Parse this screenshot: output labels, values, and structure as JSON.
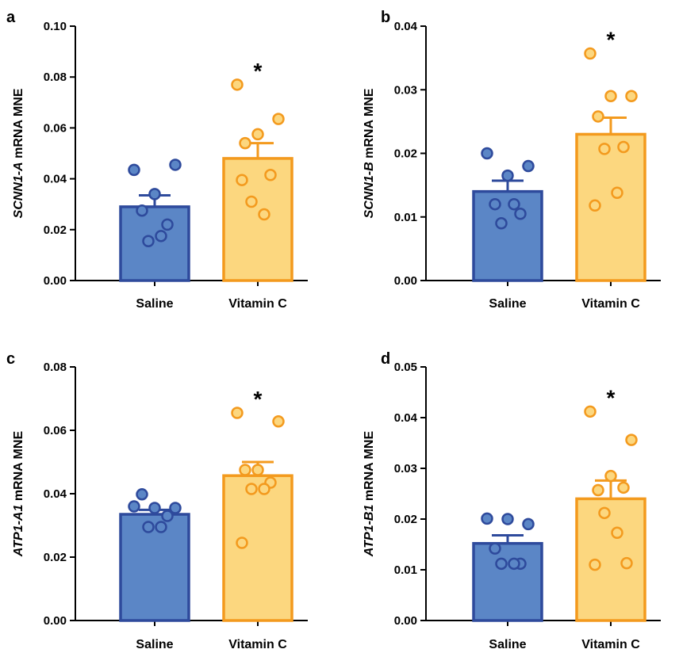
{
  "colors": {
    "saline_fill": "#5b86c6",
    "saline_stroke": "#2e4a9c",
    "vitc_fill": "#fcd77f",
    "vitc_stroke": "#f39a1e"
  },
  "chart_data": [
    {
      "panel": "a",
      "type": "bar",
      "ylabel_italic": "SCNN1-A",
      "ylabel_rest": " mRNA MNE",
      "ylim": [
        0,
        0.1
      ],
      "yticks": [
        "0.00",
        "0.02",
        "0.04",
        "0.06",
        "0.08",
        "0.10"
      ],
      "ytick_values": [
        0,
        0.02,
        0.04,
        0.06,
        0.08,
        0.1
      ],
      "categories": [
        "Saline",
        "Vitamin C"
      ],
      "means": [
        0.029,
        0.048
      ],
      "sem": [
        0.0045,
        0.006
      ],
      "points": [
        [
          0.0435,
          0.0455,
          0.034,
          0.0275,
          0.022,
          0.0155,
          0.0175
        ],
        [
          0.077,
          0.0635,
          0.0575,
          0.054,
          0.0415,
          0.031,
          0.026,
          0.0395
        ]
      ],
      "significance": [
        "",
        "*"
      ]
    },
    {
      "panel": "b",
      "type": "bar",
      "ylabel_italic": "SCNN1-B",
      "ylabel_rest": " mRNA MNE",
      "ylim": [
        0,
        0.04
      ],
      "yticks": [
        "0.00",
        "0.01",
        "0.02",
        "0.03",
        "0.04"
      ],
      "ytick_values": [
        0,
        0.01,
        0.02,
        0.03,
        0.04
      ],
      "categories": [
        "Saline",
        "Vitamin C"
      ],
      "means": [
        0.014,
        0.023
      ],
      "sem": [
        0.0017,
        0.0026
      ],
      "points": [
        [
          0.02,
          0.018,
          0.0165,
          0.012,
          0.0105,
          0.009,
          0.012
        ],
        [
          0.0357,
          0.029,
          0.029,
          0.0258,
          0.021,
          0.0207,
          0.0138,
          0.0118
        ]
      ],
      "significance": [
        "",
        "*"
      ]
    },
    {
      "panel": "c",
      "type": "bar",
      "ylabel_italic": "ATP1-A1",
      "ylabel_rest": " mRNA MNE",
      "ylim": [
        0,
        0.08
      ],
      "yticks": [
        "0.00",
        "0.02",
        "0.04",
        "0.06",
        "0.08"
      ],
      "ytick_values": [
        0,
        0.02,
        0.04,
        0.06,
        0.08
      ],
      "categories": [
        "Saline",
        "Vitamin C"
      ],
      "means": [
        0.0335,
        0.0457
      ],
      "sem": [
        0.0014,
        0.0043
      ],
      "points": [
        [
          0.036,
          0.0355,
          0.0355,
          0.0398,
          0.033,
          0.0295,
          0.0295
        ],
        [
          0.0655,
          0.0628,
          0.0475,
          0.0475,
          0.0435,
          0.0415,
          0.0415,
          0.0245
        ]
      ],
      "significance": [
        "",
        "*"
      ]
    },
    {
      "panel": "d",
      "type": "bar",
      "ylabel_italic": "ATP1-B1",
      "ylabel_rest": " mRNA MNE",
      "ylim": [
        0,
        0.05
      ],
      "yticks": [
        "0.00",
        "0.01",
        "0.02",
        "0.03",
        "0.04",
        "0.05"
      ],
      "ytick_values": [
        0,
        0.01,
        0.02,
        0.03,
        0.04,
        0.05
      ],
      "categories": [
        "Saline",
        "Vitamin C"
      ],
      "means": [
        0.0152,
        0.024
      ],
      "sem": [
        0.0016,
        0.0036
      ],
      "points": [
        [
          0.0201,
          0.019,
          0.02,
          0.0142,
          0.0112,
          0.0112,
          0.0112
        ],
        [
          0.0412,
          0.0356,
          0.0285,
          0.0257,
          0.0262,
          0.0212,
          0.0173,
          0.011,
          0.0113
        ]
      ],
      "significance": [
        "",
        "*"
      ]
    }
  ]
}
